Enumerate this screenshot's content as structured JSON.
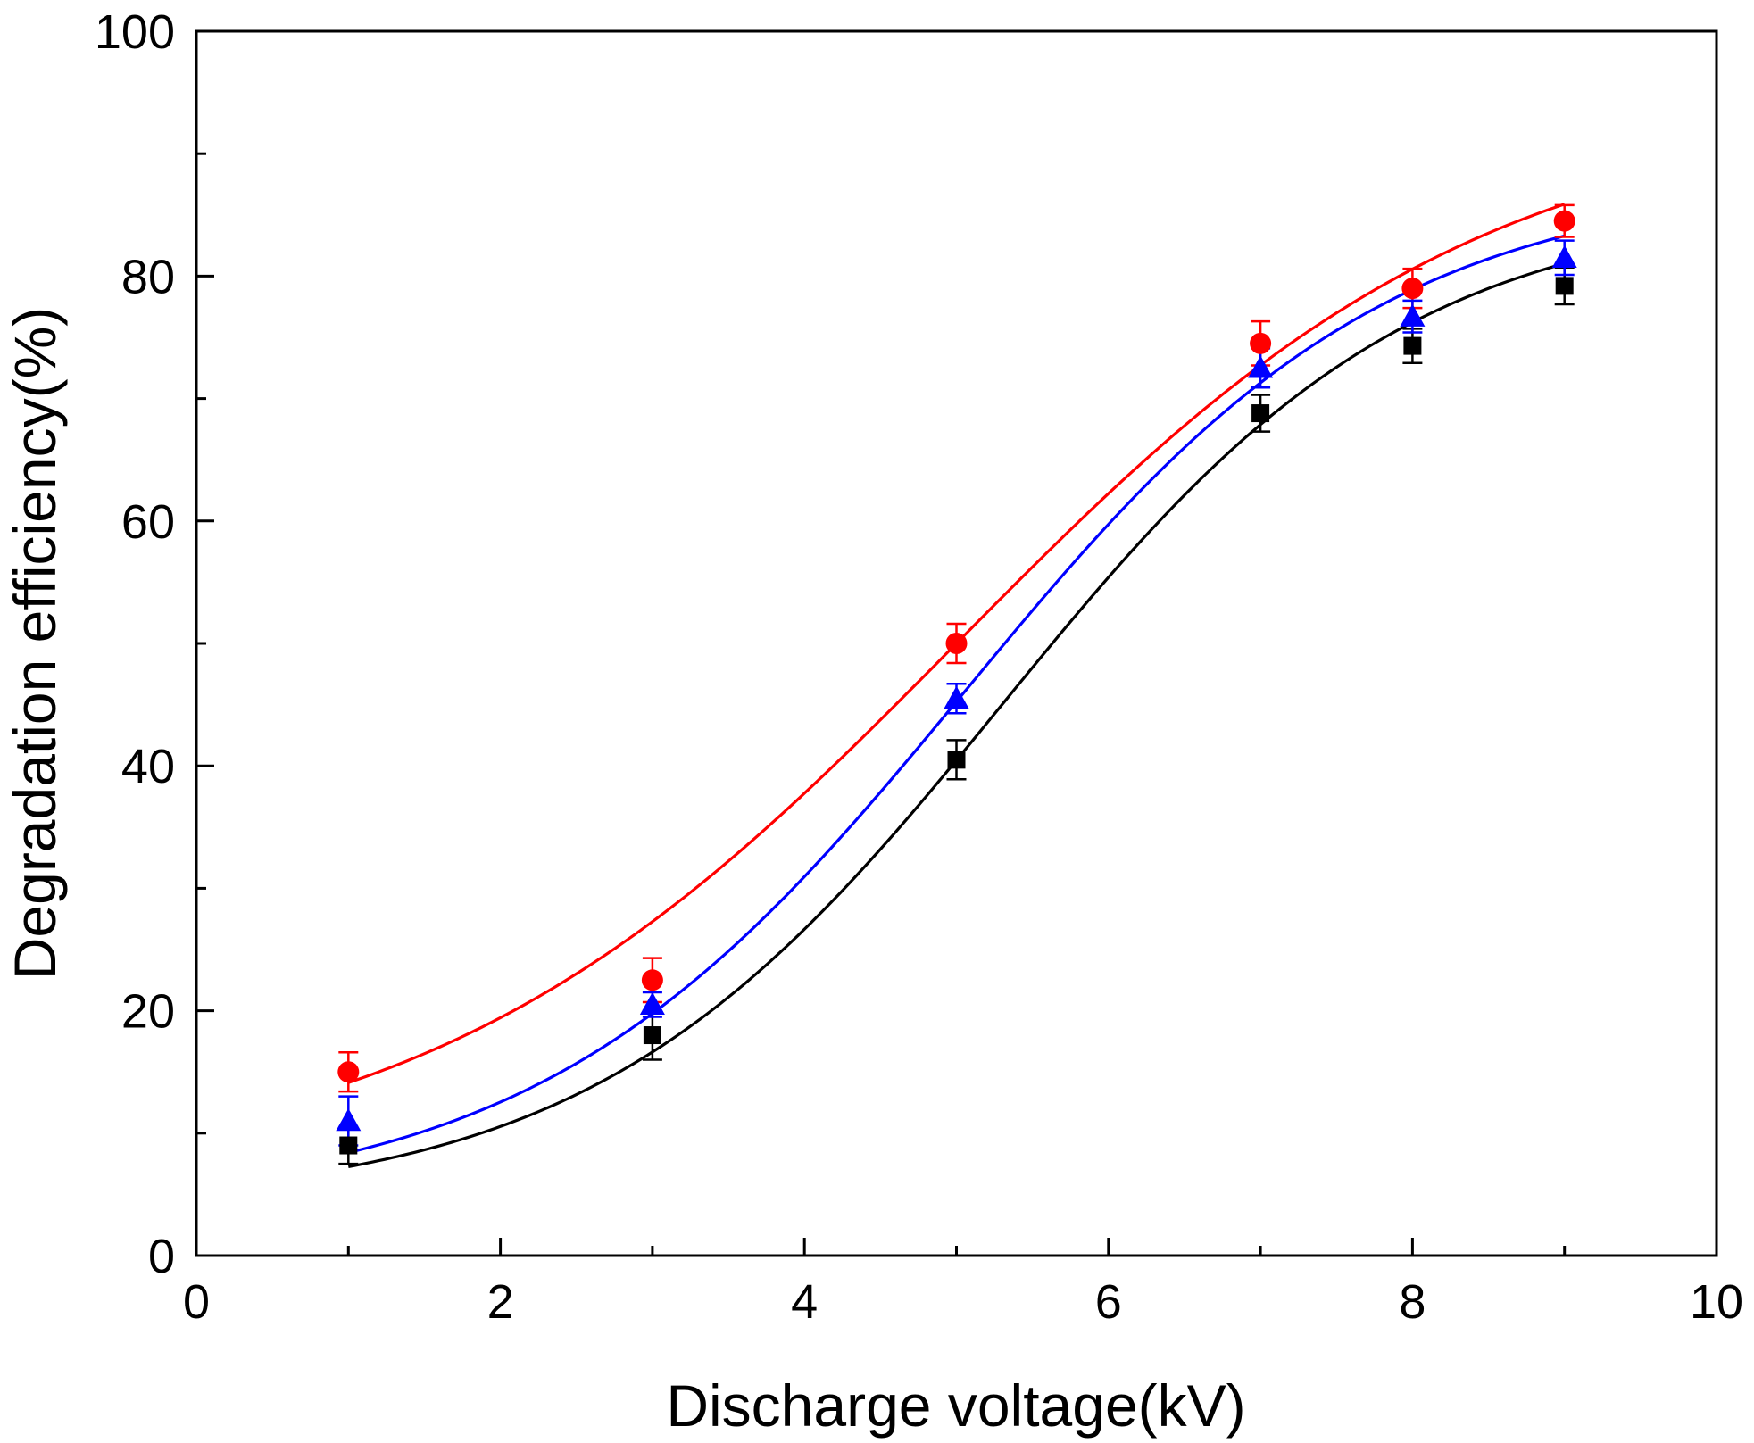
{
  "chart_data": {
    "type": "scatter",
    "title": "",
    "xlabel": "Discharge voltage(kV)",
    "ylabel": "Degradation efficiency(%)",
    "xlim": [
      0,
      10
    ],
    "ylim": [
      0,
      100
    ],
    "x_ticks": [
      0,
      2,
      4,
      6,
      8,
      10
    ],
    "y_ticks": [
      0,
      20,
      40,
      60,
      80,
      100
    ],
    "x_tick_labels": [
      "0",
      "2",
      "4",
      "6",
      "8",
      "10"
    ],
    "y_tick_labels": [
      "0",
      "20",
      "40",
      "60",
      "80",
      "100"
    ],
    "y_minor_step": 10,
    "x_minor_step": 1,
    "grid": false,
    "legend": "none",
    "series": [
      {
        "color": "#000000",
        "marker": "square",
        "x": [
          1,
          3,
          5,
          7,
          8,
          9
        ],
        "y": [
          9.0,
          18.0,
          40.5,
          68.8,
          74.3,
          79.2
        ],
        "error": [
          1.5,
          2.0,
          1.6,
          1.5,
          1.4,
          1.5
        ],
        "fit": {
          "A1": 4.0,
          "A2": 86.0,
          "x0": 5.3,
          "dx": 1.35
        }
      },
      {
        "color": "#ff0000",
        "marker": "circle",
        "x": [
          1,
          3,
          5,
          7,
          8,
          9
        ],
        "y": [
          15.0,
          22.5,
          50.0,
          74.5,
          79.0,
          84.5
        ],
        "error": [
          1.6,
          1.8,
          1.6,
          1.8,
          1.6,
          1.3
        ],
        "fit": {
          "A1": 6.0,
          "A2": 94.0,
          "x0": 5.0,
          "dx": 1.75
        }
      },
      {
        "color": "#0000ff",
        "marker": "triangle",
        "x": [
          1,
          3,
          5,
          7,
          8,
          9
        ],
        "y": [
          11.0,
          20.5,
          45.5,
          72.5,
          76.7,
          81.5
        ],
        "error": [
          2.0,
          1.0,
          1.2,
          1.6,
          1.3,
          1.4
        ],
        "fit": {
          "A1": 4.0,
          "A2": 88.0,
          "x0": 5.05,
          "dx": 1.4
        }
      }
    ]
  }
}
